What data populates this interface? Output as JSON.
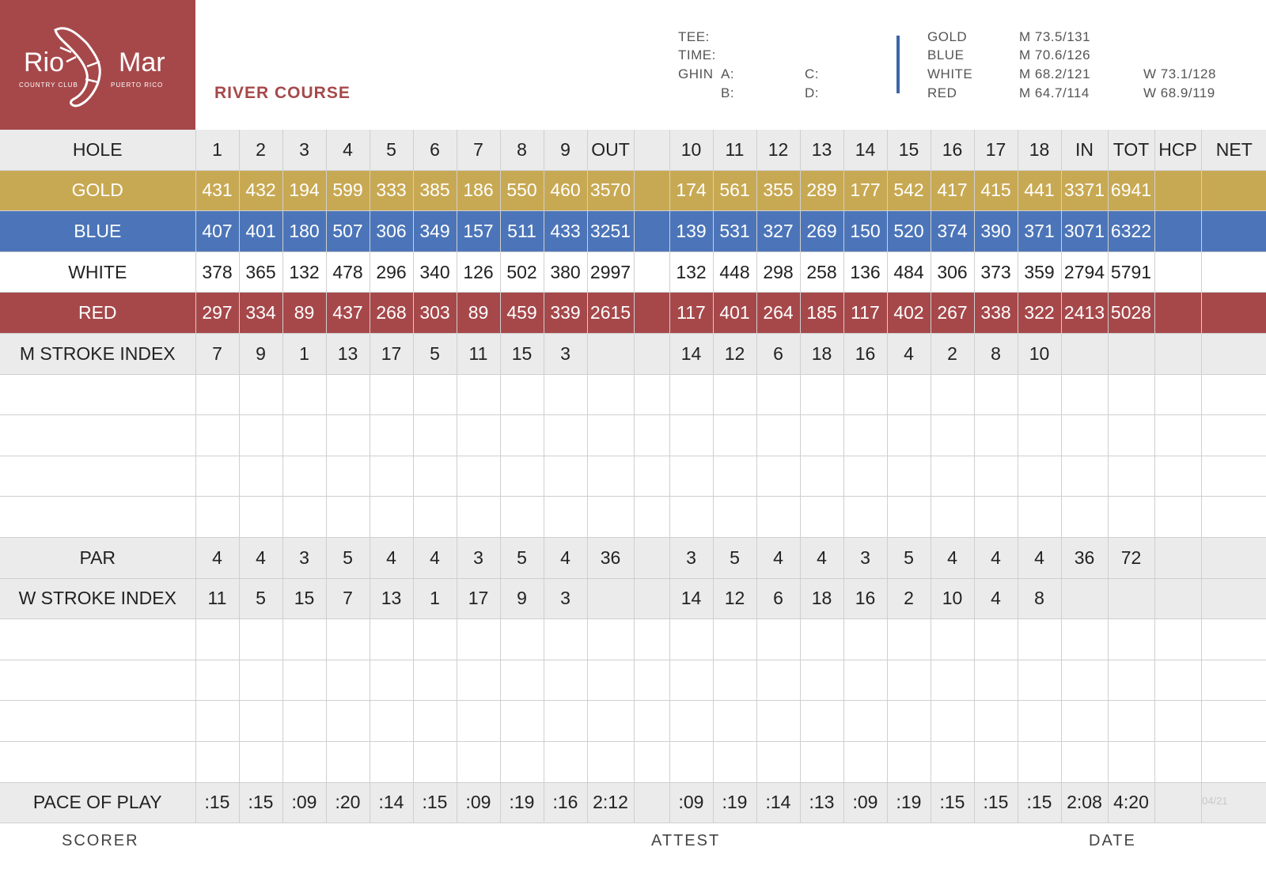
{
  "logo": {
    "brand": "Rio Mar",
    "sub_left": "COUNTRY CLUB",
    "sub_right": "PUERTO RICO"
  },
  "course_title": "RIVER COURSE",
  "header_info": {
    "tee": "TEE:",
    "time": "TIME:",
    "ghin": "GHIN",
    "a": "A:",
    "b": "B:",
    "c": "C:",
    "d": "D:"
  },
  "ratings": [
    {
      "tee": "GOLD",
      "men": "M 73.5/131",
      "women": ""
    },
    {
      "tee": "BLUE",
      "men": "M 70.6/126",
      "women": ""
    },
    {
      "tee": "WHITE",
      "men": "M 68.2/121",
      "women": "W 73.1/128"
    },
    {
      "tee": "RED",
      "men": "M 64.7/114",
      "women": "W 68.9/119"
    }
  ],
  "colors": {
    "brand_red": "#a6484a",
    "gold": "#c8a953",
    "blue": "#4c75b9",
    "divider_blue": "#3e66a8",
    "grey_row": "#ebebeb"
  },
  "rows": [
    {
      "key": "hole",
      "style": "grey",
      "cells": [
        "HOLE",
        "1",
        "2",
        "3",
        "4",
        "5",
        "6",
        "7",
        "8",
        "9",
        "OUT",
        "",
        "10",
        "11",
        "12",
        "13",
        "14",
        "15",
        "16",
        "17",
        "18",
        "IN",
        "TOT",
        "HCP",
        "NET"
      ]
    },
    {
      "key": "gold",
      "style": "gold",
      "cells": [
        "GOLD",
        "431",
        "432",
        "194",
        "599",
        "333",
        "385",
        "186",
        "550",
        "460",
        "3570",
        "",
        "174",
        "561",
        "355",
        "289",
        "177",
        "542",
        "417",
        "415",
        "441",
        "3371",
        "6941",
        "",
        ""
      ]
    },
    {
      "key": "blue",
      "style": "blue",
      "cells": [
        "BLUE",
        "407",
        "401",
        "180",
        "507",
        "306",
        "349",
        "157",
        "511",
        "433",
        "3251",
        "",
        "139",
        "531",
        "327",
        "269",
        "150",
        "520",
        "374",
        "390",
        "371",
        "3071",
        "6322",
        "",
        ""
      ]
    },
    {
      "key": "white",
      "style": "white",
      "cells": [
        "WHITE",
        "378",
        "365",
        "132",
        "478",
        "296",
        "340",
        "126",
        "502",
        "380",
        "2997",
        "",
        "132",
        "448",
        "298",
        "258",
        "136",
        "484",
        "306",
        "373",
        "359",
        "2794",
        "5791",
        "",
        ""
      ]
    },
    {
      "key": "red",
      "style": "red",
      "cells": [
        "RED",
        "297",
        "334",
        "89",
        "437",
        "268",
        "303",
        "89",
        "459",
        "339",
        "2615",
        "",
        "117",
        "401",
        "264",
        "185",
        "117",
        "402",
        "267",
        "338",
        "322",
        "2413",
        "5028",
        "",
        ""
      ]
    },
    {
      "key": "m_stroke",
      "style": "grey",
      "cells": [
        "M STROKE INDEX",
        "7",
        "9",
        "1",
        "13",
        "17",
        "5",
        "11",
        "15",
        "3",
        "",
        "",
        "14",
        "12",
        "6",
        "18",
        "16",
        "4",
        "2",
        "8",
        "10",
        "",
        "",
        "",
        ""
      ]
    },
    {
      "key": "blank1",
      "style": "blank",
      "cells": [
        "",
        "",
        "",
        "",
        "",
        "",
        "",
        "",
        "",
        "",
        "",
        "",
        "",
        "",
        "",
        "",
        "",
        "",
        "",
        "",
        "",
        "",
        "",
        "",
        ""
      ]
    },
    {
      "key": "blank2",
      "style": "blank",
      "cells": [
        "",
        "",
        "",
        "",
        "",
        "",
        "",
        "",
        "",
        "",
        "",
        "",
        "",
        "",
        "",
        "",
        "",
        "",
        "",
        "",
        "",
        "",
        "",
        "",
        ""
      ]
    },
    {
      "key": "blank3",
      "style": "blank",
      "cells": [
        "",
        "",
        "",
        "",
        "",
        "",
        "",
        "",
        "",
        "",
        "",
        "",
        "",
        "",
        "",
        "",
        "",
        "",
        "",
        "",
        "",
        "",
        "",
        "",
        ""
      ]
    },
    {
      "key": "blank4",
      "style": "blank",
      "cells": [
        "",
        "",
        "",
        "",
        "",
        "",
        "",
        "",
        "",
        "",
        "",
        "",
        "",
        "",
        "",
        "",
        "",
        "",
        "",
        "",
        "",
        "",
        "",
        "",
        ""
      ]
    },
    {
      "key": "par",
      "style": "grey",
      "cells": [
        "PAR",
        "4",
        "4",
        "3",
        "5",
        "4",
        "4",
        "3",
        "5",
        "4",
        "36",
        "",
        "3",
        "5",
        "4",
        "4",
        "3",
        "5",
        "4",
        "4",
        "4",
        "36",
        "72",
        "",
        ""
      ]
    },
    {
      "key": "w_stroke",
      "style": "grey",
      "cells": [
        "W STROKE INDEX",
        "11",
        "5",
        "15",
        "7",
        "13",
        "1",
        "17",
        "9",
        "3",
        "",
        "",
        "14",
        "12",
        "6",
        "18",
        "16",
        "2",
        "10",
        "4",
        "8",
        "",
        "",
        "",
        ""
      ]
    },
    {
      "key": "blank5",
      "style": "blank",
      "cells": [
        "",
        "",
        "",
        "",
        "",
        "",
        "",
        "",
        "",
        "",
        "",
        "",
        "",
        "",
        "",
        "",
        "",
        "",
        "",
        "",
        "",
        "",
        "",
        "",
        ""
      ]
    },
    {
      "key": "blank6",
      "style": "blank",
      "cells": [
        "",
        "",
        "",
        "",
        "",
        "",
        "",
        "",
        "",
        "",
        "",
        "",
        "",
        "",
        "",
        "",
        "",
        "",
        "",
        "",
        "",
        "",
        "",
        "",
        ""
      ]
    },
    {
      "key": "blank7",
      "style": "blank",
      "cells": [
        "",
        "",
        "",
        "",
        "",
        "",
        "",
        "",
        "",
        "",
        "",
        "",
        "",
        "",
        "",
        "",
        "",
        "",
        "",
        "",
        "",
        "",
        "",
        "",
        ""
      ]
    },
    {
      "key": "blank8",
      "style": "blank",
      "cells": [
        "",
        "",
        "",
        "",
        "",
        "",
        "",
        "",
        "",
        "",
        "",
        "",
        "",
        "",
        "",
        "",
        "",
        "",
        "",
        "",
        "",
        "",
        "",
        "",
        ""
      ]
    },
    {
      "key": "pace",
      "style": "grey",
      "cells": [
        "PACE OF PLAY",
        ":15",
        ":15",
        ":09",
        ":20",
        ":14",
        ":15",
        ":09",
        ":19",
        ":16",
        "2:12",
        "",
        ":09",
        ":19",
        ":14",
        ":13",
        ":09",
        ":19",
        ":15",
        ":15",
        ":15",
        "2:08",
        "4:20",
        "",
        ""
      ]
    }
  ],
  "footer": {
    "scorer": "SCORER",
    "attest": "ATTEST",
    "date": "DATE",
    "version": "04/21"
  }
}
